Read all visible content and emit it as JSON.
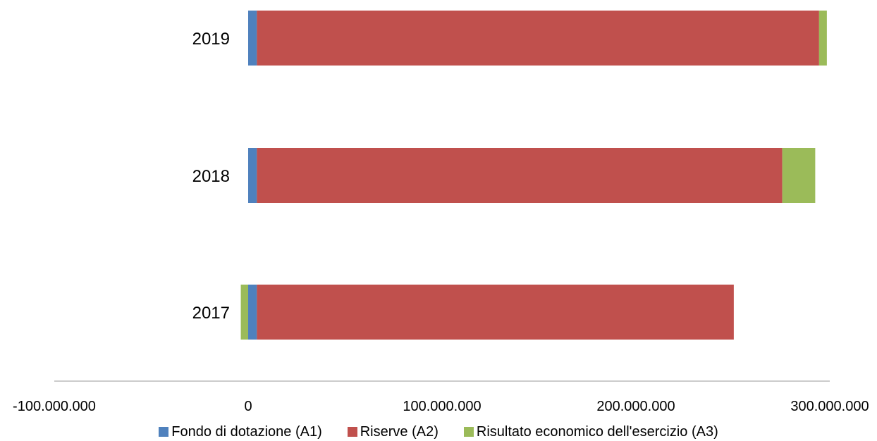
{
  "chart_data": {
    "type": "bar",
    "orientation": "horizontal",
    "stacked": true,
    "categories": [
      "2019",
      "2018",
      "2017"
    ],
    "series": [
      {
        "name": "Fondo di dotazione (A1)",
        "color": "#4F81BD",
        "values": [
          4500000,
          4500000,
          4500000
        ]
      },
      {
        "name": "Riserve (A2)",
        "color": "#C0504D",
        "values": [
          290000000,
          271000000,
          246000000
        ]
      },
      {
        "name": "Risultato economico dell'esercizio (A3)",
        "color": "#9BBB59",
        "values": [
          4000000,
          17000000,
          -3800000
        ]
      }
    ],
    "xlim": [
      -100000000,
      300000000
    ],
    "xticks": [
      "-100.000.000",
      "0",
      "100.000.000",
      "200.000.000",
      "300.000.000"
    ],
    "xtick_values": [
      -100000000,
      0,
      100000000,
      200000000,
      300000000
    ],
    "grid": false,
    "legend_position": "bottom",
    "title": "",
    "xlabel": "",
    "ylabel": ""
  }
}
